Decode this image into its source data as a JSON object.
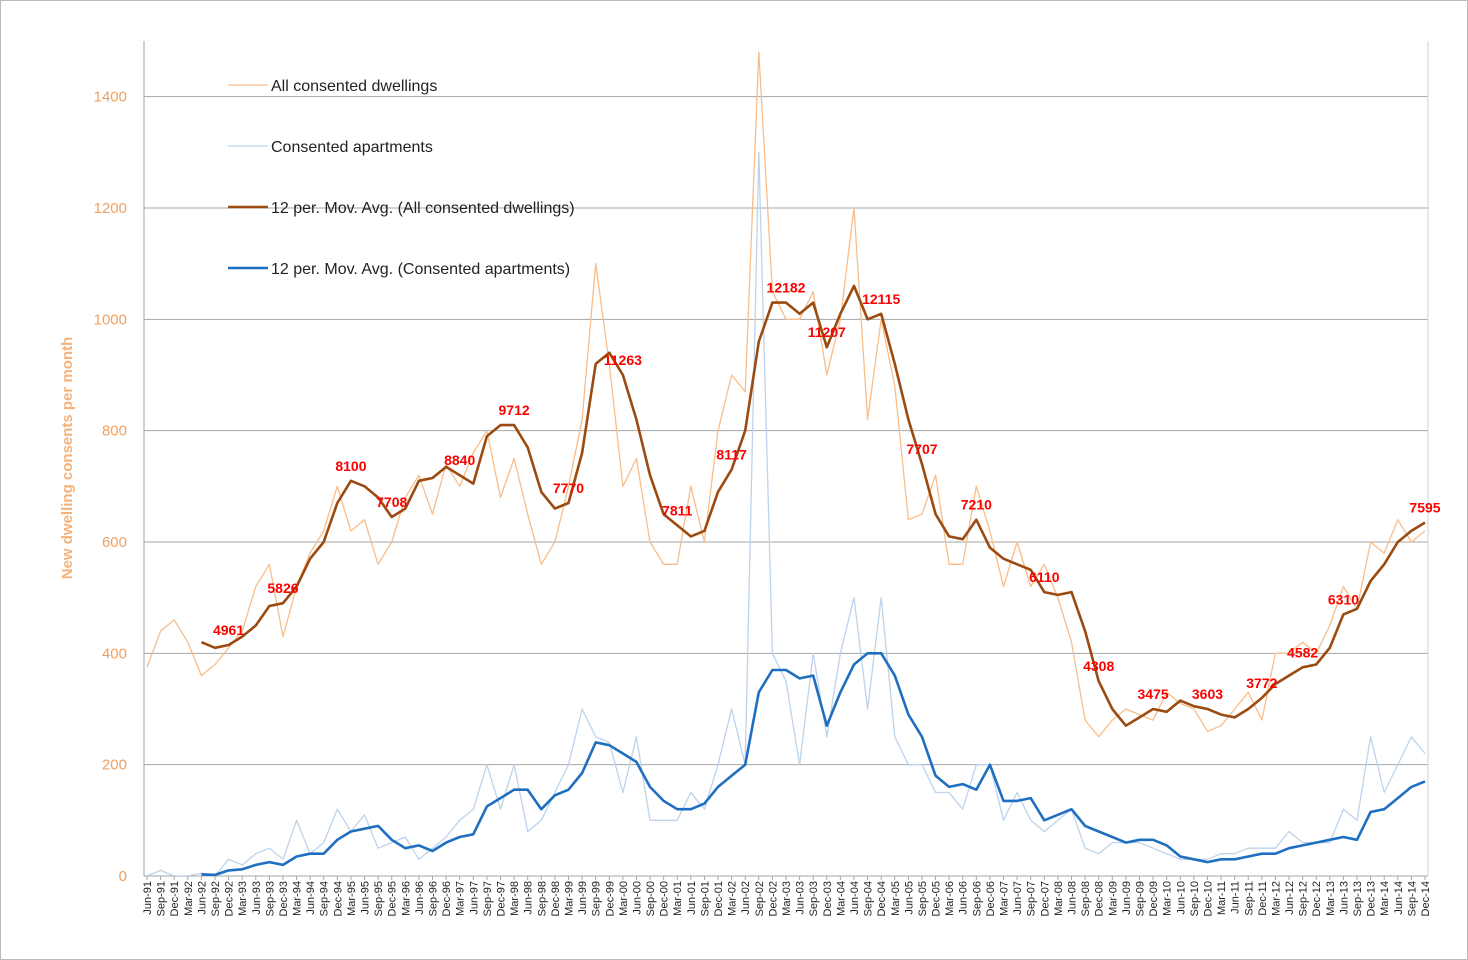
{
  "chart_data": {
    "type": "line",
    "y_label": "New dwelling consents per month",
    "categories": [
      "Jun-91",
      "Sep-91",
      "Dec-91",
      "Mar-92",
      "Jun-92",
      "Sep-92",
      "Dec-92",
      "Mar-93",
      "Jun-93",
      "Sep-93",
      "Dec-93",
      "Mar-94",
      "Jun-94",
      "Sep-94",
      "Dec-94",
      "Mar-95",
      "Jun-95",
      "Sep-95",
      "Dec-95",
      "Mar-96",
      "Jun-96",
      "Sep-96",
      "Dec-96",
      "Mar-97",
      "Jun-97",
      "Sep-97",
      "Dec-97",
      "Mar-98",
      "Jun-98",
      "Sep-98",
      "Dec-98",
      "Mar-99",
      "Jun-99",
      "Sep-99",
      "Dec-99",
      "Mar-00",
      "Jun-00",
      "Sep-00",
      "Dec-00",
      "Mar-01",
      "Jun-01",
      "Sep-01",
      "Dec-01",
      "Mar-02",
      "Jun-02",
      "Sep-02",
      "Dec-02",
      "Mar-03",
      "Jun-03",
      "Sep-03",
      "Dec-03",
      "Mar-04",
      "Jun-04",
      "Sep-04",
      "Dec-04",
      "Mar-05",
      "Jun-05",
      "Sep-05",
      "Dec-05",
      "Mar-06",
      "Jun-06",
      "Sep-06",
      "Dec-06",
      "Mar-07",
      "Jun-07",
      "Sep-07",
      "Dec-07",
      "Mar-08",
      "Jun-08",
      "Sep-08",
      "Dec-08",
      "Mar-09",
      "Jun-09",
      "Sep-09",
      "Dec-09",
      "Mar-10",
      "Jun-10",
      "Sep-10",
      "Dec-10",
      "Mar-11",
      "Jun-11",
      "Sep-11",
      "Dec-11",
      "Mar-12",
      "Jun-12",
      "Sep-12",
      "Dec-12",
      "Mar-13",
      "Jun-13",
      "Sep-13",
      "Dec-13",
      "Mar-14",
      "Jun-14",
      "Sep-14",
      "Dec-14"
    ],
    "series": [
      {
        "name": "All consented dwellings",
        "color": "#f8bd8a",
        "line_width": 1.3,
        "values": [
          375,
          440,
          460,
          420,
          360,
          380,
          410,
          440,
          520,
          560,
          430,
          520,
          580,
          620,
          700,
          620,
          640,
          560,
          600,
          680,
          720,
          650,
          740,
          700,
          760,
          800,
          680,
          750,
          650,
          560,
          600,
          700,
          820,
          1100,
          920,
          700,
          750,
          600,
          560,
          560,
          700,
          600,
          800,
          900,
          870,
          1480,
          1050,
          1000,
          1000,
          1050,
          900,
          1000,
          1200,
          820,
          1000,
          880,
          640,
          650,
          720,
          560,
          560,
          700,
          620,
          520,
          600,
          520,
          560,
          500,
          420,
          280,
          250,
          280,
          300,
          290,
          280,
          330,
          310,
          300,
          260,
          270,
          300,
          330,
          280,
          400,
          400,
          420,
          400,
          450,
          520,
          480,
          600,
          580,
          640,
          600,
          620
        ]
      },
      {
        "name": "Consented apartments",
        "color": "#bdd3ec",
        "line_width": 1.3,
        "values": [
          0,
          10,
          0,
          0,
          5,
          0,
          30,
          20,
          40,
          50,
          30,
          100,
          40,
          60,
          120,
          80,
          110,
          50,
          60,
          70,
          30,
          50,
          70,
          100,
          120,
          200,
          120,
          200,
          80,
          100,
          150,
          200,
          300,
          250,
          240,
          150,
          250,
          100,
          100,
          100,
          150,
          120,
          200,
          300,
          200,
          1300,
          400,
          350,
          200,
          400,
          250,
          400,
          500,
          300,
          500,
          250,
          200,
          200,
          150,
          150,
          120,
          200,
          200,
          100,
          150,
          100,
          80,
          100,
          120,
          50,
          40,
          60,
          60,
          60,
          50,
          40,
          30,
          30,
          30,
          40,
          40,
          50,
          50,
          50,
          80,
          60,
          60,
          60,
          120,
          100,
          250,
          150,
          200,
          250,
          220
        ]
      },
      {
        "name": "12 per. Mov. Avg. (All consented dwellings)",
        "color": "#9b4a10",
        "line_width": 2.6,
        "values": [
          null,
          null,
          null,
          null,
          420,
          410,
          415,
          430,
          450,
          485,
          490,
          520,
          570,
          600,
          670,
          710,
          700,
          680,
          645,
          660,
          710,
          715,
          735,
          720,
          705,
          790,
          810,
          810,
          770,
          690,
          660,
          670,
          760,
          920,
          940,
          900,
          820,
          720,
          650,
          630,
          610,
          620,
          690,
          730,
          800,
          960,
          1030,
          1030,
          1010,
          1030,
          950,
          1010,
          1060,
          1000,
          1010,
          920,
          820,
          740,
          650,
          610,
          605,
          640,
          590,
          570,
          560,
          550,
          510,
          505,
          510,
          440,
          350,
          300,
          270,
          285,
          300,
          295,
          315,
          305,
          300,
          290,
          285,
          300,
          320,
          345,
          360,
          375,
          380,
          410,
          470,
          480,
          530,
          560,
          600,
          620,
          635
        ]
      },
      {
        "name": "12 per. Mov. Avg. (Consented apartments)",
        "color": "#1f6fc1",
        "line_width": 2.6,
        "values": [
          null,
          null,
          null,
          null,
          3,
          2,
          10,
          12,
          20,
          25,
          20,
          35,
          40,
          40,
          65,
          80,
          85,
          90,
          65,
          50,
          55,
          45,
          60,
          70,
          75,
          125,
          140,
          155,
          155,
          120,
          145,
          155,
          185,
          240,
          235,
          220,
          205,
          160,
          135,
          120,
          120,
          130,
          160,
          180,
          200,
          330,
          370,
          370,
          355,
          360,
          270,
          330,
          380,
          400,
          400,
          360,
          290,
          250,
          180,
          160,
          165,
          155,
          200,
          135,
          135,
          140,
          100,
          110,
          120,
          90,
          80,
          70,
          60,
          65,
          65,
          55,
          35,
          30,
          25,
          30,
          30,
          35,
          40,
          40,
          50,
          55,
          60,
          65,
          70,
          65,
          115,
          120,
          140,
          160,
          170
        ]
      }
    ],
    "ylim": [
      0,
      1500
    ],
    "yticks": [
      0,
      200,
      400,
      600,
      800,
      1000,
      1200,
      1400
    ],
    "grid": true,
    "legend": "upper left",
    "annotation_color": "#ff0000",
    "annotations": [
      {
        "value": 4961,
        "at": "Dec-92"
      },
      {
        "value": 5826,
        "at": "Dec-93"
      },
      {
        "value": 8100,
        "at": "Mar-95"
      },
      {
        "value": 7708,
        "at": "Dec-95"
      },
      {
        "value": 8840,
        "at": "Mar-97"
      },
      {
        "value": 9712,
        "at": "Mar-98"
      },
      {
        "value": 7770,
        "at": "Mar-99"
      },
      {
        "value": 11263,
        "at": "Mar-00"
      },
      {
        "value": 7811,
        "at": "Mar-01"
      },
      {
        "value": 8117,
        "at": "Mar-02"
      },
      {
        "value": 12182,
        "at": "Mar-03"
      },
      {
        "value": 11207,
        "at": "Dec-03"
      },
      {
        "value": 12115,
        "at": "Dec-04"
      },
      {
        "value": 7707,
        "at": "Sep-05"
      },
      {
        "value": 7210,
        "at": "Sep-06"
      },
      {
        "value": 6110,
        "at": "Dec-07"
      },
      {
        "value": 4308,
        "at": "Dec-08"
      },
      {
        "value": 3475,
        "at": "Dec-09"
      },
      {
        "value": 3603,
        "at": "Dec-10"
      },
      {
        "value": 3772,
        "at": "Dec-11"
      },
      {
        "value": 4582,
        "at": "Sep-12"
      },
      {
        "value": 6310,
        "at": "Jun-13"
      },
      {
        "value": 7595,
        "at": "Dec-14"
      }
    ]
  }
}
